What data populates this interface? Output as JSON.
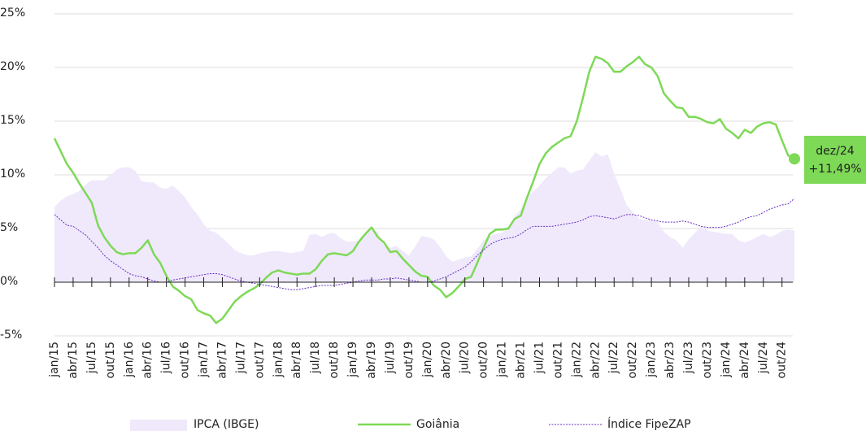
{
  "chart_data": {
    "type": "line",
    "categories": [
      "jan/15",
      null,
      null,
      "abr/15",
      null,
      null,
      "jul/15",
      null,
      null,
      "out/15",
      null,
      null,
      "jan/16",
      null,
      null,
      "abr/16",
      null,
      null,
      "jul/16",
      null,
      null,
      "out/16",
      null,
      null,
      "jan/17",
      null,
      null,
      "abr/17",
      null,
      null,
      "jul/17",
      null,
      null,
      "out/17",
      null,
      null,
      "jan/18",
      null,
      null,
      "abr/18",
      null,
      null,
      "jul/18",
      null,
      null,
      "out/18",
      null,
      null,
      "jan/19",
      null,
      null,
      "abr/19",
      null,
      null,
      "jul/19",
      null,
      null,
      "out/19",
      null,
      null,
      "jan/20",
      null,
      null,
      "abr/20",
      null,
      null,
      "jul/20",
      null,
      null,
      "out/20",
      null,
      null,
      "jan/21",
      null,
      null,
      "abr/21",
      null,
      null,
      "jul/21",
      null,
      null,
      "out/21",
      null,
      null,
      "jan/22",
      null,
      null,
      "abr/22",
      null,
      null,
      "jul/22",
      null,
      null,
      "out/22",
      null,
      null,
      "jan/23",
      null,
      null,
      "abr/23",
      null,
      null,
      "jul/23",
      null,
      null,
      "out/23",
      null,
      null,
      "jan/24",
      null,
      null,
      "abr/24",
      null,
      null,
      "jul/24",
      null,
      null,
      "out/24",
      null,
      null
    ],
    "series": [
      {
        "name": "IPCA (IBGE)",
        "kind": "area",
        "color": "#efe9fb",
        "values": [
          7.0,
          7.6,
          8.0,
          8.2,
          8.5,
          9.1,
          9.5,
          9.5,
          9.5,
          10.0,
          10.5,
          10.7,
          10.7,
          10.4,
          9.4,
          9.3,
          9.3,
          8.8,
          8.7,
          9.0,
          8.5,
          7.9,
          7.0,
          6.3,
          5.4,
          4.8,
          4.6,
          4.1,
          3.6,
          3.0,
          2.7,
          2.5,
          2.5,
          2.7,
          2.8,
          2.9,
          2.9,
          2.8,
          2.7,
          2.8,
          2.9,
          4.4,
          4.5,
          4.2,
          4.5,
          4.6,
          4.1,
          3.8,
          3.8,
          3.9,
          4.6,
          4.9,
          4.7,
          3.4,
          3.2,
          3.4,
          2.9,
          2.5,
          3.3,
          4.3,
          4.2,
          4.0,
          3.3,
          2.4,
          1.9,
          2.1,
          2.3,
          2.4,
          3.1,
          3.9,
          4.3,
          4.5,
          4.6,
          5.2,
          6.1,
          6.8,
          8.1,
          8.4,
          9.0,
          9.7,
          10.2,
          10.7,
          10.7,
          10.1,
          10.4,
          10.5,
          11.3,
          12.1,
          11.7,
          11.9,
          10.1,
          8.7,
          7.2,
          6.5,
          5.9,
          5.8,
          5.8,
          5.6,
          4.7,
          4.2,
          3.9,
          3.2,
          4.0,
          4.6,
          5.2,
          4.8,
          4.7,
          4.6,
          4.5,
          4.5,
          3.9,
          3.7,
          3.9,
          4.2,
          4.5,
          4.2,
          4.4,
          4.8,
          4.9,
          4.8
        ]
      },
      {
        "name": "Goiânia",
        "kind": "line",
        "color": "#7ed957",
        "values": [
          13.4,
          12.2,
          11.0,
          10.2,
          9.2,
          8.3,
          7.4,
          5.3,
          4.2,
          3.4,
          2.8,
          2.6,
          2.7,
          2.7,
          3.2,
          3.9,
          2.6,
          1.8,
          0.6,
          -0.4,
          -0.8,
          -1.3,
          -1.6,
          -2.6,
          -2.9,
          -3.1,
          -3.8,
          -3.4,
          -2.6,
          -1.8,
          -1.3,
          -0.9,
          -0.6,
          -0.2,
          0.4,
          0.9,
          1.1,
          0.9,
          0.8,
          0.7,
          0.8,
          0.8,
          1.2,
          2.0,
          2.6,
          2.7,
          2.6,
          2.5,
          2.9,
          3.8,
          4.5,
          5.1,
          4.2,
          3.7,
          2.8,
          2.9,
          2.2,
          1.6,
          1.0,
          0.6,
          0.5,
          -0.3,
          -0.7,
          -1.4,
          -1.0,
          -0.4,
          0.3,
          0.5,
          1.8,
          3.2,
          4.5,
          4.9,
          4.9,
          5.0,
          5.9,
          6.2,
          7.9,
          9.4,
          11.0,
          12.0,
          12.6,
          13.0,
          13.4,
          13.6,
          15.0,
          17.2,
          19.6,
          21.0,
          20.8,
          20.4,
          19.6,
          19.6,
          20.1,
          20.5,
          21.0,
          20.3,
          20.0,
          19.2,
          17.6,
          16.9,
          16.3,
          16.2,
          15.4,
          15.4,
          15.2,
          14.9,
          14.8,
          15.2,
          14.3,
          13.9,
          13.4,
          14.2,
          13.9,
          14.5,
          14.8,
          14.9,
          14.7,
          13.2,
          11.8,
          11.49
        ]
      },
      {
        "name": "Índice FipeZAP",
        "kind": "dotted",
        "color": "#6a2cc6",
        "values": [
          6.3,
          5.8,
          5.3,
          5.2,
          4.8,
          4.4,
          3.8,
          3.2,
          2.5,
          2.0,
          1.6,
          1.2,
          0.8,
          0.6,
          0.5,
          0.3,
          0.1,
          0.0,
          0.0,
          0.2,
          0.3,
          0.4,
          0.5,
          0.6,
          0.7,
          0.8,
          0.8,
          0.7,
          0.5,
          0.3,
          0.1,
          0.0,
          -0.1,
          -0.2,
          -0.3,
          -0.4,
          -0.5,
          -0.6,
          -0.7,
          -0.7,
          -0.6,
          -0.5,
          -0.4,
          -0.3,
          -0.3,
          -0.3,
          -0.2,
          -0.1,
          0.0,
          0.1,
          0.2,
          0.2,
          0.2,
          0.3,
          0.3,
          0.4,
          0.3,
          0.2,
          0.1,
          0.0,
          0.0,
          0.1,
          0.3,
          0.5,
          0.8,
          1.1,
          1.4,
          1.9,
          2.5,
          3.0,
          3.5,
          3.8,
          4.0,
          4.1,
          4.2,
          4.5,
          4.9,
          5.2,
          5.2,
          5.2,
          5.2,
          5.3,
          5.4,
          5.5,
          5.6,
          5.8,
          6.1,
          6.2,
          6.1,
          6.0,
          5.9,
          6.1,
          6.3,
          6.3,
          6.2,
          6.0,
          5.8,
          5.7,
          5.6,
          5.6,
          5.6,
          5.7,
          5.6,
          5.4,
          5.2,
          5.1,
          5.1,
          5.1,
          5.2,
          5.4,
          5.6,
          5.9,
          6.1,
          6.2,
          6.5,
          6.8,
          7.0,
          7.2,
          7.3,
          7.8
        ]
      }
    ],
    "annotation": {
      "label": "dez/24",
      "value_label": "+11,49%",
      "color": "#7ed957"
    },
    "ylim": [
      -5,
      25
    ],
    "yticks": [
      {
        "value": -5,
        "label": "-5%"
      },
      {
        "value": 0,
        "label": "0%"
      },
      {
        "value": 5,
        "label": "5%"
      },
      {
        "value": 10,
        "label": "10%"
      },
      {
        "value": 15,
        "label": "15%"
      },
      {
        "value": 20,
        "label": "20%"
      },
      {
        "value": 25,
        "label": "25%"
      }
    ],
    "grid": true,
    "legend": "bottom"
  }
}
